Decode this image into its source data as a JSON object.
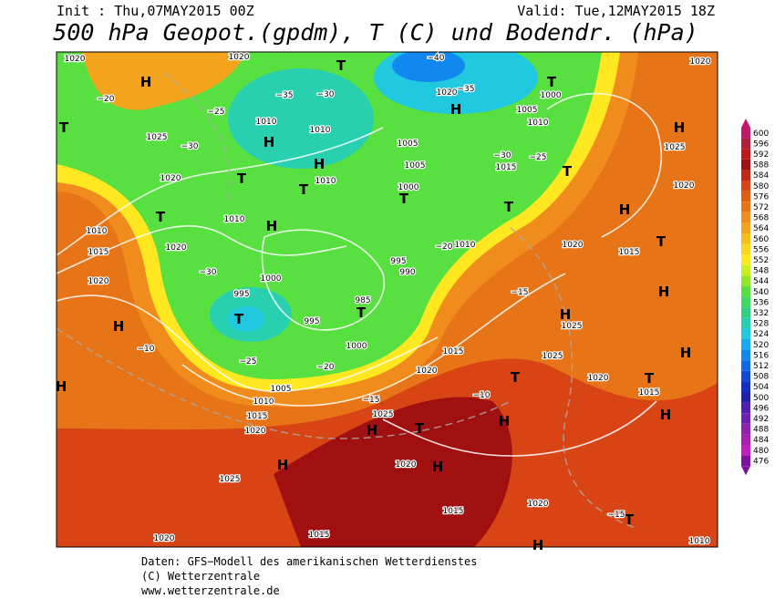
{
  "header": {
    "init": "Init : Thu,07MAY2015 00Z",
    "valid": "Valid: Tue,12MAY2015 18Z",
    "title": "500 hPa Geopot.(gpdm), T (C) und Bodendr. (hPa)"
  },
  "map": {
    "labels": [
      "1020",
      "1020",
      "H",
      "T",
      "−20",
      "−25",
      "−35",
      "−30",
      "1010",
      "1025",
      "−30",
      "H",
      "1010",
      "1005",
      "1020",
      "T",
      "H",
      "1010",
      "1005",
      "T",
      "T",
      "1000",
      "1010",
      "H",
      "T",
      "1010",
      "1015",
      "1020",
      "1020",
      "−30",
      "1000",
      "995",
      "990",
      "985",
      "995",
      "T",
      "995",
      "T",
      "H",
      "−10",
      "1000",
      "−20",
      "−25",
      "1005",
      "1010",
      "1015",
      "1020",
      "H",
      "1025",
      "1020",
      "1015",
      "1020",
      "H",
      "1015",
      "1020",
      "T",
      "H",
      "1025",
      "H",
      "T",
      "T",
      "H",
      "−10",
      "1015",
      "1020",
      "−15",
      "1010",
      "1020",
      "1015",
      "−30",
      "−25",
      "T",
      "1005",
      "1000",
      "1010",
      "H",
      "T",
      "1020",
      "−35",
      "−40",
      "H",
      "1025",
      "1020",
      "H",
      "T",
      "1015",
      "H",
      "1025",
      "1025",
      "1020",
      "T",
      "1015",
      "H",
      "H",
      "−15",
      "−20",
      "H",
      "T",
      "1020",
      "T",
      "H",
      "−15",
      "1010"
    ]
  },
  "colorbar": {
    "ticks": [
      600,
      596,
      592,
      588,
      584,
      580,
      576,
      572,
      568,
      564,
      560,
      556,
      552,
      548,
      544,
      540,
      536,
      532,
      528,
      524,
      520,
      516,
      512,
      508,
      504,
      500,
      496,
      492,
      488,
      484,
      480,
      476
    ],
    "colors": [
      "#c0186a",
      "#b0203c",
      "#c01818",
      "#a01010",
      "#c02814",
      "#d84414",
      "#e05c14",
      "#e87418",
      "#f08c1c",
      "#f4a41c",
      "#f8bc1c",
      "#fcd41c",
      "#ffe820",
      "#c8f020",
      "#90e828",
      "#58e040",
      "#40d860",
      "#30d080",
      "#28d0b0",
      "#20c8e0",
      "#18a8f0",
      "#1088f0",
      "#1068e8",
      "#1048d8",
      "#1030c8",
      "#2020b0",
      "#5020b0",
      "#7020b0",
      "#9020b0",
      "#a820b0",
      "#c020c0",
      "#8010a0"
    ]
  },
  "footer": {
    "lines": [
      "Daten: GFS−Modell des amerikanischen Wetterdienstes",
      "(C) Wetterzentrale",
      "www.wetterzentrale.de"
    ]
  }
}
